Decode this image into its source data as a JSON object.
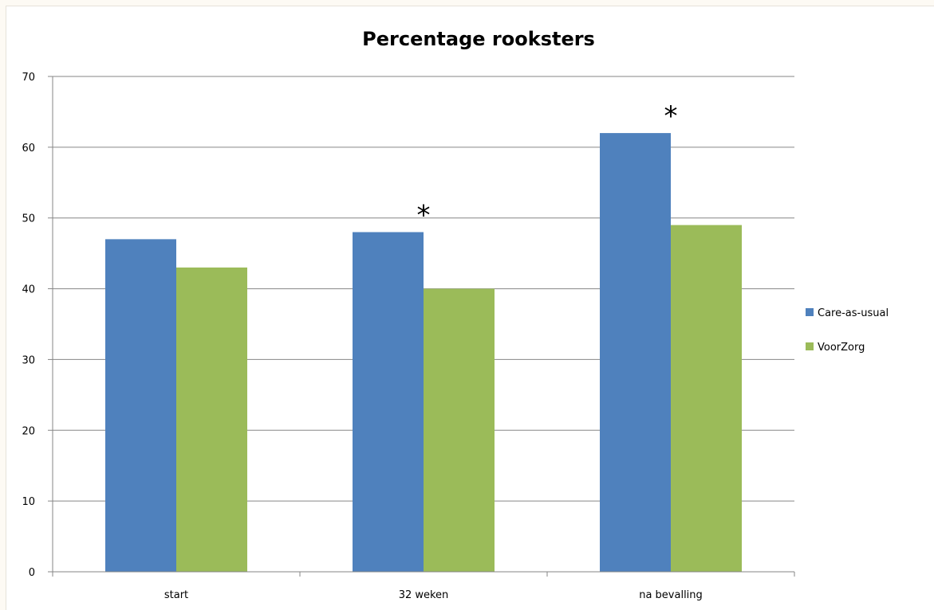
{
  "chart_data": {
    "type": "bar",
    "title": "Percentage rooksters",
    "categories": [
      "start",
      "32 weken",
      "na bevalling"
    ],
    "series": [
      {
        "name": "Care-as-usual",
        "values": [
          47,
          48,
          62
        ],
        "color": "#4f81bd"
      },
      {
        "name": "VoorZorg",
        "values": [
          43,
          40,
          49
        ],
        "color": "#9bbb59"
      }
    ],
    "ylim": [
      0,
      70
    ],
    "yticks": [
      "0",
      "10",
      "20",
      "30",
      "40",
      "50",
      "60",
      "70"
    ],
    "grid": true,
    "legend_position": "right",
    "annotations": [
      {
        "category": "32 weken",
        "text": "*"
      },
      {
        "category": "na bevalling",
        "text": "*"
      }
    ]
  }
}
